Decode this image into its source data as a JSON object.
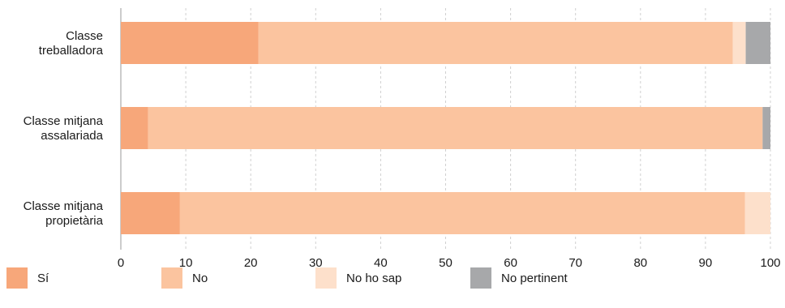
{
  "chart_data": {
    "type": "bar",
    "orientation": "horizontal",
    "stacked": true,
    "categories": [
      [
        "Classe",
        "treballadora"
      ],
      [
        "Classe mitjana",
        "assalariada"
      ],
      [
        "Classe mitjana",
        "propietària"
      ]
    ],
    "series": [
      {
        "name": "Sí",
        "color": "#f7a77a",
        "values": [
          21.2,
          4.2,
          9.1
        ]
      },
      {
        "name": "No",
        "color": "#fbc49f",
        "values": [
          73.0,
          94.6,
          87.0
        ]
      },
      {
        "name": "No ho sap",
        "color": "#fde0cb",
        "values": [
          2.0,
          0.0,
          3.9
        ]
      },
      {
        "name": "No pertinent",
        "color": "#a7a8aa",
        "values": [
          3.8,
          1.2,
          0.0
        ]
      }
    ],
    "xlim": [
      0,
      100
    ],
    "xticks": [
      0,
      10,
      20,
      30,
      40,
      50,
      60,
      70,
      80,
      90,
      100
    ],
    "grid": "vertical-dashed",
    "legend": "bottom"
  }
}
